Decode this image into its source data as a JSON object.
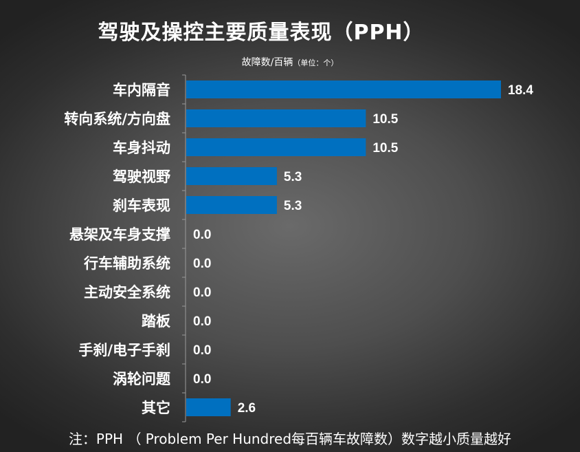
{
  "title": "驾驶及操控主要质量表现（PPH）",
  "subtitle": {
    "main": "故障数/百辆",
    "unit": "（单位：个）"
  },
  "footnote": "注：PPH （ Problem Per Hundred每百辆车故障数）数字越小质量越好",
  "colors": {
    "bar": "#0070C0",
    "axis": "#9a9a9a",
    "text": "#ffffff"
  },
  "chart_data": {
    "type": "bar",
    "orientation": "horizontal",
    "categories": [
      "车内隔音",
      "转向系统/方向盘",
      "车身抖动",
      "驾驶视野",
      "刹车表现",
      "悬架及车身支撑",
      "行车辅助系统",
      "主动安全系统",
      "踏板",
      "手刹/电子手刹",
      "涡轮问题",
      "其它"
    ],
    "values": [
      18.4,
      10.5,
      10.5,
      5.3,
      5.3,
      0.0,
      0.0,
      0.0,
      0.0,
      0.0,
      0.0,
      2.6
    ],
    "value_labels": [
      "18.4",
      "10.5",
      "10.5",
      "5.3",
      "5.3",
      "0.0",
      "0.0",
      "0.0",
      "0.0",
      "0.0",
      "0.0",
      "2.6"
    ],
    "title": "驾驶及操控主要质量表现（PPH）",
    "xlabel": "故障数/百辆（单位：个）",
    "ylabel": "",
    "xlim": [
      0,
      18.4
    ],
    "grid": false,
    "legend": false
  }
}
